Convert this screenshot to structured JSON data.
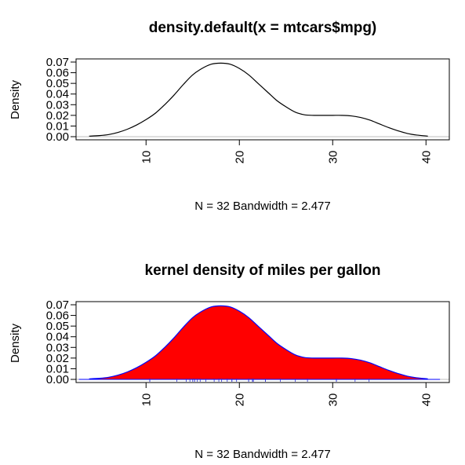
{
  "chart_data": [
    {
      "type": "line",
      "title": "density.default(x = mtcars$mpg)",
      "xlabel": "N = 32   Bandwidth = 2.477",
      "ylabel": "Density",
      "xlim": [
        2.5,
        42.5
      ],
      "ylim": [
        0,
        0.07
      ],
      "x_ticks": [
        "10",
        "20",
        "30",
        "40"
      ],
      "y_ticks": [
        "0.00",
        "0.01",
        "0.02",
        "0.03",
        "0.04",
        "0.05",
        "0.06",
        "0.07"
      ],
      "fill": false,
      "line_color": "#000000",
      "series": [
        {
          "x": [
            3.9,
            5,
            6,
            7,
            8,
            9,
            10,
            11,
            12,
            13,
            14,
            15,
            16,
            17,
            18,
            19,
            20,
            21,
            22,
            23,
            24,
            25,
            26,
            27,
            28,
            29,
            30,
            31,
            32,
            33,
            34,
            35,
            36,
            37,
            38,
            39,
            40,
            40.2
          ],
          "y": [
            0.0005,
            0.001,
            0.002,
            0.004,
            0.007,
            0.011,
            0.016,
            0.022,
            0.03,
            0.039,
            0.049,
            0.058,
            0.064,
            0.068,
            0.069,
            0.068,
            0.064,
            0.058,
            0.05,
            0.042,
            0.034,
            0.028,
            0.023,
            0.0205,
            0.02,
            0.02,
            0.02,
            0.02,
            0.0195,
            0.018,
            0.0155,
            0.012,
            0.0085,
            0.0055,
            0.003,
            0.0015,
            0.0007,
            0.0005
          ]
        }
      ]
    },
    {
      "type": "area",
      "title": "kernel density of miles per gallon",
      "xlabel": "N = 32   Bandwidth = 2.477",
      "ylabel": "Density",
      "xlim": [
        2.5,
        42.5
      ],
      "ylim": [
        0,
        0.07
      ],
      "x_ticks": [
        "10",
        "20",
        "30",
        "40"
      ],
      "y_ticks": [
        "0.00",
        "0.01",
        "0.02",
        "0.03",
        "0.04",
        "0.05",
        "0.06",
        "0.07"
      ],
      "fill": true,
      "fill_color": "#ff0000",
      "line_color": "#0000ff",
      "rug_color": "#2b2bd6",
      "rug": [
        10.4,
        10.4,
        13.3,
        14.3,
        14.7,
        15.0,
        15.2,
        15.2,
        15.5,
        15.8,
        16.4,
        17.3,
        17.8,
        18.1,
        18.7,
        19.2,
        19.2,
        19.7,
        21.0,
        21.0,
        21.4,
        21.4,
        21.5,
        22.8,
        22.8,
        24.4,
        26.0,
        27.3,
        30.4,
        30.4,
        32.4,
        33.9
      ],
      "series": [
        {
          "x": [
            3.9,
            5,
            6,
            7,
            8,
            9,
            10,
            11,
            12,
            13,
            14,
            15,
            16,
            17,
            18,
            19,
            20,
            21,
            22,
            23,
            24,
            25,
            26,
            27,
            28,
            29,
            30,
            31,
            32,
            33,
            34,
            35,
            36,
            37,
            38,
            39,
            40,
            40.2
          ],
          "y": [
            0.0005,
            0.001,
            0.002,
            0.004,
            0.007,
            0.011,
            0.016,
            0.022,
            0.03,
            0.039,
            0.049,
            0.058,
            0.064,
            0.068,
            0.069,
            0.068,
            0.064,
            0.058,
            0.05,
            0.042,
            0.034,
            0.028,
            0.023,
            0.0205,
            0.02,
            0.02,
            0.02,
            0.02,
            0.0195,
            0.018,
            0.0155,
            0.012,
            0.0085,
            0.0055,
            0.003,
            0.0015,
            0.0007,
            0.0005
          ]
        }
      ]
    }
  ]
}
